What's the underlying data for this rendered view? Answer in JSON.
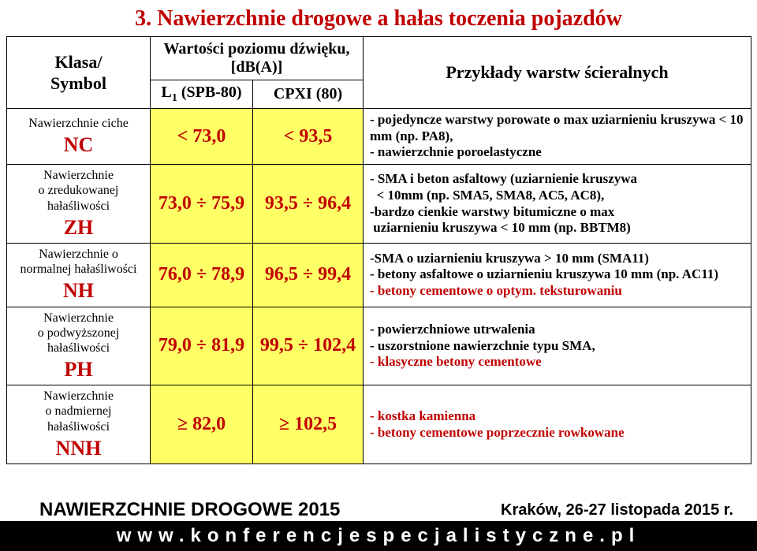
{
  "title": "3. Nawierzchnie  drogowe a hałas toczenia pojazdów",
  "header": {
    "klasa_line1": "Klasa/",
    "klasa_line2": "Symbol",
    "wartosci": "Wartości poziomu dźwięku, [dB(A)]",
    "sub_l1_html": "L<sub>1</sub> (SPB-80)",
    "sub_cpxi": "CPXI (80)",
    "przyklady": "Przykłady warstw ścieralnych"
  },
  "rows": [
    {
      "label_lines": [
        "Nawierzchnie ciche"
      ],
      "symbol": "NC",
      "v1": "< 73,0",
      "v2": "< 93,5",
      "desc_html": "- pojedyncze warstwy porowate o max uziarnieniu kruszywa < 10 mm (np. PA8),<br>- nawierzchnie poroelastyczne"
    },
    {
      "label_lines": [
        "Nawierzchnie",
        "o zredukowanej",
        "hałaśliwości"
      ],
      "symbol": "ZH",
      "v1": "73,0 ÷ 75,9",
      "v2": "93,5 ÷ 96,4",
      "desc_html": "- SMA i beton asfaltowy (uziarnienie kruszywa<br>&nbsp;&nbsp;< 10mm (np. SMA5, SMA8, AC5, AC8),<br>-bardzo cienkie warstwy bitumiczne o max<br>&nbsp;uziarnieniu  kruszywa < 10 mm (np. BBTM8)"
    },
    {
      "label_lines": [
        "Nawierzchnie o",
        "normalnej hałaśliwości"
      ],
      "symbol": "NH",
      "v1": "76,0 ÷ 78,9",
      "v2": "96,5 ÷ 99,4",
      "desc_html": "-SMA o uziarnieniu kruszywa > 10 mm (SMA11)<br>- betony asfaltowe o uziarnieniu kruszywa  10 mm (np. AC11)<br><span class=\"red\">- betony cementowe o optym. teksturowaniu</span>"
    },
    {
      "label_lines": [
        "Nawierzchnie",
        "o podwyższonej",
        "hałaśliwości"
      ],
      "symbol": "PH",
      "v1": "79,0 ÷ 81,9",
      "v2": "99,5 ÷ 102,4",
      "desc_html": "- powierzchniowe utrwalenia<br>- uszorstnione nawierzchnie typu SMA,<br><span class=\"red\">- klasyczne betony cementowe</span>"
    },
    {
      "label_lines": [
        "Nawierzchnie",
        "o nadmiernej",
        "hałaśliwości"
      ],
      "symbol": "NNH",
      "v1": "≥ 82,0",
      "v2": "≥ 102,5",
      "desc_html": "<span class=\"red\">- kostka kamienna<br>- betony cementowe poprzecznie rowkowane</span>"
    }
  ],
  "footer": {
    "conf_name": "NAWIERZCHNIE DROGOWE 2015",
    "conf_place": "Kraków, 26-27 listopada 2015 r.",
    "url": "www.konferencjespecjalistyczne.pl"
  },
  "colors": {
    "accent_red": "#c00000",
    "highlight_yellow": "#ffff66",
    "footer_bg": "#000000",
    "footer_fg": "#ffffff"
  }
}
